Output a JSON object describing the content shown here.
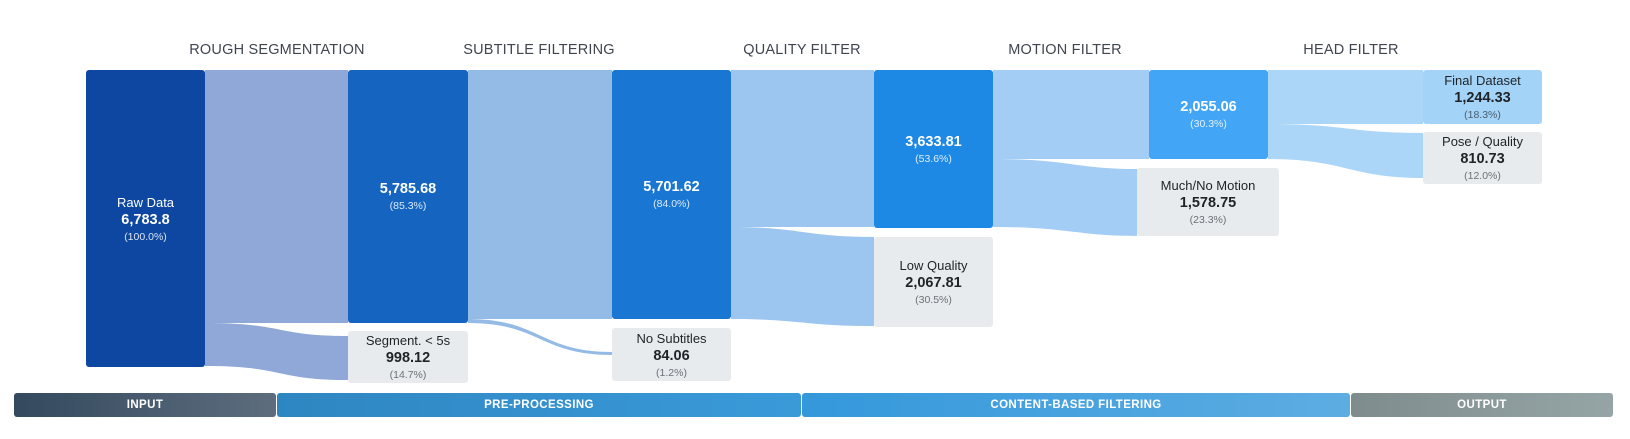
{
  "stages": [
    {
      "label": "ROUGH SEGMENTATION"
    },
    {
      "label": "SUBTITLE FILTERING"
    },
    {
      "label": "QUALITY FILTER"
    },
    {
      "label": "MOTION FILTER"
    },
    {
      "label": "HEAD FILTER"
    }
  ],
  "nodes": {
    "raw": {
      "label": "Raw Data",
      "value": "6,783.8",
      "pct": "(100.0%)"
    },
    "rough": {
      "value": "5,785.68",
      "pct": "(85.3%)"
    },
    "seg_drop": {
      "label": "Segment. < 5s",
      "value": "998.12",
      "pct": "(14.7%)"
    },
    "subtitle": {
      "value": "5,701.62",
      "pct": "(84.0%)"
    },
    "no_sub": {
      "label": "No Subtitles",
      "value": "84.06",
      "pct": "(1.2%)"
    },
    "quality": {
      "value": "3,633.81",
      "pct": "(53.6%)"
    },
    "low_quality": {
      "label": "Low Quality",
      "value": "2,067.81",
      "pct": "(30.5%)"
    },
    "motion": {
      "value": "2,055.06",
      "pct": "(30.3%)"
    },
    "much_motion": {
      "label": "Much/No Motion",
      "value": "1,578.75",
      "pct": "(23.3%)"
    },
    "final": {
      "label": "Final Dataset",
      "value": "1,244.33",
      "pct": "(18.3%)"
    },
    "pose": {
      "label": "Pose / Quality",
      "value": "810.73",
      "pct": "(12.0%)"
    }
  },
  "phases": [
    {
      "label": "INPUT"
    },
    {
      "label": "PRE-PROCESSING"
    },
    {
      "label": "CONTENT-BASED FILTERING"
    },
    {
      "label": "OUTPUT"
    }
  ],
  "colors": {
    "raw": "#0d47a1",
    "rough": "#1565c0",
    "subtitle": "#1976d2",
    "quality": "#1e88e5",
    "motion": "#42a5f5",
    "dropped": "#e8ebee",
    "link1": "#8fa8d8",
    "link2": "#94bae6",
    "link3": "#9cc6ef",
    "link4": "#a3cdf4",
    "link5": "#acd6f8"
  }
}
